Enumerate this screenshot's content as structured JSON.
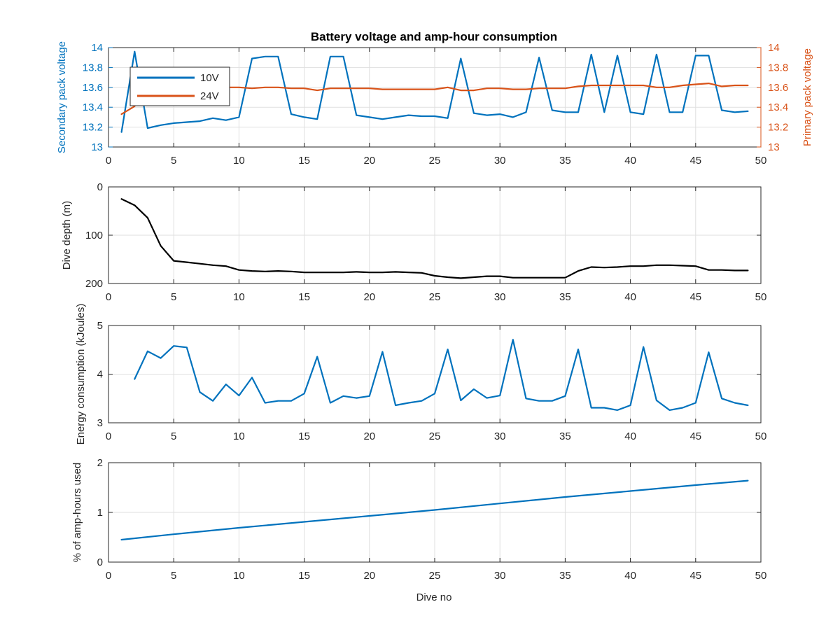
{
  "figure": {
    "title": "Battery voltage and amp-hour consumption",
    "xlabel": "Dive no",
    "colors": {
      "blue": "#0072bd",
      "orange": "#d95319",
      "black": "#000000",
      "axis": "#262626",
      "grid": "#dfdfdf"
    }
  },
  "chart_data": [
    {
      "type": "line",
      "title": "Battery voltage and amp-hour consumption",
      "xlabel": "",
      "ylabel": "Secondary pack voltage",
      "ylabel_right": "Primary pack voltage",
      "xlim": [
        0,
        50
      ],
      "ylim": [
        13,
        14
      ],
      "ylim_right": [
        13,
        14
      ],
      "xticks": [
        0,
        5,
        10,
        15,
        20,
        25,
        30,
        35,
        40,
        45,
        50
      ],
      "yticks": [
        13,
        13.2,
        13.4,
        13.6,
        13.8,
        14
      ],
      "yticks_right": [
        13,
        13.2,
        13.4,
        13.6,
        13.8,
        14
      ],
      "grid": true,
      "legend": "top-left",
      "series": [
        {
          "name": "10V",
          "axis": "left",
          "color": "#0072bd",
          "x": [
            1,
            2,
            3,
            4,
            5,
            6,
            7,
            8,
            9,
            10,
            11,
            12,
            13,
            14,
            15,
            16,
            17,
            18,
            19,
            20,
            21,
            22,
            23,
            24,
            25,
            26,
            27,
            28,
            29,
            30,
            31,
            32,
            33,
            34,
            35,
            36,
            37,
            38,
            39,
            40,
            41,
            42,
            43,
            44,
            45,
            46,
            47,
            48,
            49
          ],
          "y": [
            13.15,
            13.96,
            13.19,
            13.22,
            13.24,
            13.25,
            13.26,
            13.29,
            13.27,
            13.3,
            13.89,
            13.91,
            13.91,
            13.33,
            13.3,
            13.28,
            13.91,
            13.91,
            13.32,
            13.3,
            13.28,
            13.3,
            13.32,
            13.31,
            13.31,
            13.29,
            13.89,
            13.34,
            13.32,
            13.33,
            13.3,
            13.35,
            13.9,
            13.37,
            13.35,
            13.35,
            13.93,
            13.35,
            13.92,
            13.35,
            13.33,
            13.93,
            13.35,
            13.35,
            13.92,
            13.92,
            13.37,
            13.35,
            13.36
          ]
        },
        {
          "name": "24V",
          "axis": "right",
          "color": "#d95319",
          "x": [
            1,
            2,
            3,
            4,
            5,
            6,
            7,
            8,
            9,
            10,
            11,
            12,
            13,
            14,
            15,
            16,
            17,
            18,
            19,
            20,
            21,
            22,
            23,
            24,
            25,
            26,
            27,
            28,
            29,
            30,
            31,
            32,
            33,
            34,
            35,
            36,
            37,
            38,
            39,
            40,
            41,
            42,
            43,
            44,
            45,
            46,
            47,
            48,
            49
          ],
          "y": [
            13.33,
            13.41,
            13.6,
            13.6,
            13.6,
            13.6,
            13.6,
            13.6,
            13.6,
            13.6,
            13.59,
            13.6,
            13.6,
            13.59,
            13.59,
            13.57,
            13.59,
            13.59,
            13.59,
            13.59,
            13.58,
            13.58,
            13.58,
            13.58,
            13.58,
            13.6,
            13.57,
            13.57,
            13.59,
            13.59,
            13.58,
            13.58,
            13.59,
            13.59,
            13.59,
            13.61,
            13.62,
            13.62,
            13.62,
            13.62,
            13.62,
            13.6,
            13.6,
            13.62,
            13.63,
            13.64,
            13.61,
            13.62,
            13.62
          ]
        }
      ]
    },
    {
      "type": "line",
      "xlabel": "",
      "ylabel": "Dive depth (m)",
      "xlim": [
        0,
        50
      ],
      "ylim": [
        0,
        200
      ],
      "y_reversed": true,
      "xticks": [
        0,
        5,
        10,
        15,
        20,
        25,
        30,
        35,
        40,
        45,
        50
      ],
      "yticks": [
        0,
        100,
        200
      ],
      "grid": true,
      "series": [
        {
          "color": "#000000",
          "x": [
            1,
            2,
            3,
            4,
            5,
            6,
            7,
            8,
            9,
            10,
            11,
            12,
            13,
            14,
            15,
            16,
            17,
            18,
            19,
            20,
            21,
            22,
            23,
            24,
            25,
            26,
            27,
            28,
            29,
            30,
            31,
            32,
            33,
            34,
            35,
            36,
            37,
            38,
            39,
            40,
            41,
            42,
            43,
            44,
            45,
            46,
            47,
            48,
            49
          ],
          "y": [
            25,
            38,
            64,
            122,
            153,
            156,
            159,
            162,
            164,
            172,
            174,
            175,
            174,
            175,
            177,
            177,
            177,
            177,
            176,
            177,
            177,
            176,
            177,
            178,
            184,
            187,
            189,
            187,
            185,
            185,
            188,
            188,
            188,
            188,
            188,
            174,
            166,
            167,
            166,
            164,
            164,
            162,
            162,
            163,
            164,
            172,
            172,
            173,
            173
          ]
        }
      ]
    },
    {
      "type": "line",
      "xlabel": "",
      "ylabel": "Energy consumption (kJoules)",
      "xlim": [
        0,
        50
      ],
      "ylim": [
        3,
        5
      ],
      "xticks": [
        0,
        5,
        10,
        15,
        20,
        25,
        30,
        35,
        40,
        45,
        50
      ],
      "yticks": [
        3,
        4,
        5
      ],
      "grid": true,
      "series": [
        {
          "color": "#0072bd",
          "x": [
            2,
            3,
            4,
            5,
            6,
            7,
            8,
            9,
            10,
            11,
            12,
            13,
            14,
            15,
            16,
            17,
            18,
            19,
            20,
            21,
            22,
            23,
            24,
            25,
            26,
            27,
            28,
            29,
            30,
            31,
            32,
            33,
            34,
            35,
            36,
            37,
            38,
            39,
            40,
            41,
            42,
            43,
            44,
            45,
            46,
            47,
            48,
            49
          ],
          "y": [
            3.9,
            4.47,
            4.33,
            4.58,
            4.55,
            3.63,
            3.45,
            3.79,
            3.56,
            3.93,
            3.41,
            3.45,
            3.45,
            3.6,
            4.36,
            3.41,
            3.55,
            3.51,
            3.55,
            4.46,
            3.36,
            3.41,
            3.45,
            3.6,
            4.51,
            3.46,
            3.69,
            3.51,
            3.56,
            4.71,
            3.5,
            3.45,
            3.45,
            3.55,
            4.51,
            3.31,
            3.31,
            3.26,
            3.36,
            4.56,
            3.46,
            3.26,
            3.31,
            3.41,
            4.45,
            3.5,
            3.41,
            3.36
          ]
        }
      ]
    },
    {
      "type": "line",
      "xlabel": "Dive no",
      "ylabel": "% of amp-hours used",
      "xlim": [
        0,
        50
      ],
      "ylim": [
        0,
        2
      ],
      "xticks": [
        0,
        5,
        10,
        15,
        20,
        25,
        30,
        35,
        40,
        45,
        50
      ],
      "yticks": [
        0,
        1,
        2
      ],
      "grid": true,
      "series": [
        {
          "color": "#0072bd",
          "x": [
            1,
            5,
            10,
            15,
            20,
            25,
            30,
            35,
            40,
            45,
            49
          ],
          "y": [
            0.45,
            0.56,
            0.69,
            0.81,
            0.93,
            1.05,
            1.18,
            1.31,
            1.43,
            1.55,
            1.64
          ]
        }
      ]
    }
  ]
}
